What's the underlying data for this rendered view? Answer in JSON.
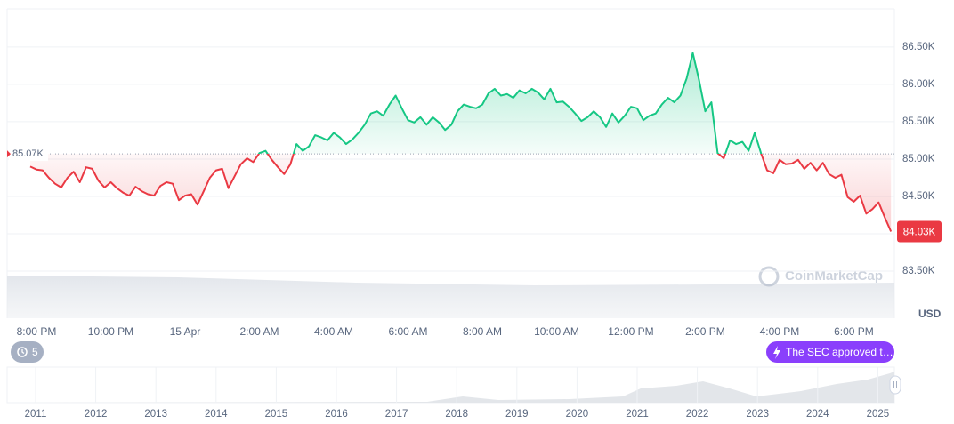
{
  "chart_data": {
    "type": "line",
    "categories": [
      null,
      null,
      null,
      null,
      null,
      "8:00 PM",
      null,
      null,
      null,
      null,
      null,
      null,
      null,
      null,
      null,
      null,
      null,
      "10:00 PM",
      null,
      null,
      null,
      null,
      null,
      null,
      null,
      null,
      null,
      null,
      null,
      "15 Apr",
      null,
      null,
      null,
      null,
      null,
      null,
      null,
      null,
      null,
      null,
      null,
      "2:00 AM",
      null,
      null,
      null,
      null,
      null,
      null,
      null,
      null,
      null,
      null,
      null,
      "4:00 AM",
      null,
      null,
      null,
      null,
      null,
      null,
      null,
      null,
      null,
      null,
      null,
      "6:00 AM",
      null,
      null,
      null,
      null,
      null,
      null,
      null,
      null,
      null,
      null,
      null,
      "8:00 AM",
      null,
      null,
      null,
      null,
      null,
      null,
      null,
      null,
      null,
      null,
      null,
      "10:00 AM",
      null,
      null,
      null,
      null,
      null,
      null,
      null,
      null,
      null,
      null,
      null,
      "12:00 PM",
      null,
      null,
      null,
      null,
      null,
      null,
      null,
      null,
      null,
      null,
      null,
      "2:00 PM",
      null,
      null,
      null,
      null,
      null,
      null,
      null,
      null,
      null,
      null,
      null,
      "4:00 PM",
      null,
      null,
      null,
      null,
      null,
      null,
      null,
      null,
      null,
      null,
      null,
      "6:00 PM",
      null,
      null,
      null,
      null,
      null,
      null
    ],
    "values": [
      null,
      null,
      null,
      null,
      84900,
      84860,
      84850,
      84750,
      84670,
      84620,
      84750,
      84830,
      84690,
      84890,
      84870,
      84710,
      84620,
      84690,
      84610,
      84550,
      84510,
      84630,
      84570,
      84530,
      84510,
      84640,
      84690,
      84670,
      84450,
      84510,
      84530,
      84390,
      84570,
      84750,
      84850,
      84870,
      84610,
      84770,
      84930,
      85010,
      84960,
      85080,
      85110,
      84990,
      84890,
      84800,
      84930,
      85200,
      85110,
      85170,
      85320,
      85290,
      85250,
      85350,
      85290,
      85200,
      85260,
      85350,
      85460,
      85610,
      85640,
      85580,
      85730,
      85850,
      85680,
      85520,
      85490,
      85560,
      85460,
      85560,
      85490,
      85390,
      85460,
      85640,
      85730,
      85700,
      85680,
      85730,
      85880,
      85940,
      85850,
      85870,
      85820,
      85920,
      85880,
      85940,
      85890,
      85800,
      85940,
      85760,
      85770,
      85700,
      85610,
      85510,
      85560,
      85640,
      85560,
      85430,
      85610,
      85490,
      85580,
      85700,
      85680,
      85520,
      85580,
      85610,
      85730,
      85820,
      85760,
      85850,
      86080,
      86420,
      86060,
      85640,
      85760,
      85080,
      85010,
      85250,
      85200,
      85230,
      85110,
      85350,
      85080,
      84850,
      84810,
      84990,
      84930,
      84940,
      84990,
      84870,
      84950,
      84850,
      84950,
      84800,
      84750,
      84790,
      84490,
      84430,
      84510,
      84270,
      84330,
      84420,
      84220,
      84030
    ],
    "up_color": "#16c784",
    "down_color": "#ea3943",
    "ylim": [
      82870,
      87010
    ],
    "yticks": [
      {
        "value": 83500,
        "label": "83.50K"
      },
      {
        "value": 84000,
        "label": "84.00K"
      },
      {
        "value": 84500,
        "label": "84.50K"
      },
      {
        "value": 85000,
        "label": "85.00K"
      },
      {
        "value": 85500,
        "label": "85.50K"
      },
      {
        "value": 86000,
        "label": "86.00K"
      },
      {
        "value": 86500,
        "label": "86.50K"
      }
    ],
    "grid": true,
    "baseline": {
      "value": 85070,
      "label": "85.07K"
    },
    "current_price": {
      "value": 84030,
      "label": "84.03K"
    },
    "y_unit": "USD",
    "watermark": "CoinMarketCap",
    "events_count": 5,
    "event_label": "The SEC approved t…",
    "navigator_years": [
      2011,
      2012,
      2013,
      2014,
      2015,
      2016,
      2017,
      2018,
      2019,
      2020,
      2021,
      2022,
      2023,
      2024,
      2025
    ]
  }
}
